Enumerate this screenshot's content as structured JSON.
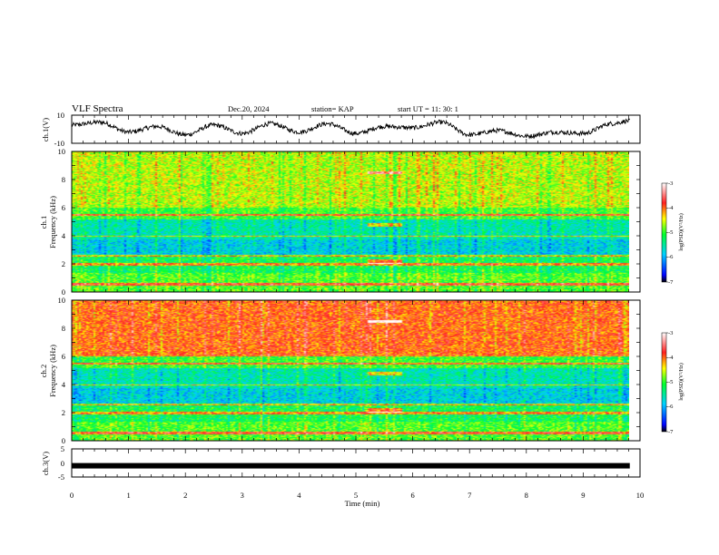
{
  "header": {
    "title": "VLF Spectra",
    "date": "Dec.20, 2024",
    "station": "station= KAP",
    "start": "start UT =  11: 30: 1"
  },
  "chart_data": [
    {
      "type": "line",
      "panel": "ch1-waveform",
      "ylabel": "ch.1(V)",
      "ylim": [
        -10,
        10
      ],
      "y_ticks": [
        "10",
        "-10"
      ],
      "xlim": [
        0,
        10
      ],
      "x": [
        0,
        0.5,
        1,
        1.5,
        2,
        2.5,
        3,
        3.5,
        4,
        4.5,
        5,
        5.5,
        6,
        6.5,
        7,
        7.5,
        8,
        8.5,
        9,
        9.5,
        9.82
      ],
      "values": [
        3,
        5,
        -2,
        2,
        -4,
        3,
        -3,
        4,
        -2,
        4,
        -3,
        2,
        1,
        5,
        -4,
        -1,
        -5,
        -2,
        -3,
        4,
        6
      ]
    },
    {
      "type": "heatmap",
      "panel": "ch1-spectrogram",
      "ylabel": "ch.1\nFrequency (kHz)",
      "ylim": [
        0,
        10
      ],
      "y_ticks": [
        "0",
        "2",
        "4",
        "6",
        "8",
        "10"
      ],
      "xlim": [
        0,
        10
      ],
      "colorbar": {
        "label": "log(PSD)(V²/Hz)",
        "range": [
          -7,
          -3
        ],
        "ticks": [
          "-3",
          "-4",
          "-5",
          "-6",
          "-7"
        ]
      }
    },
    {
      "type": "heatmap",
      "panel": "ch2-spectrogram",
      "ylabel": "ch.2\nFrequency (kHz)",
      "ylim": [
        0,
        10
      ],
      "y_ticks": [
        "0",
        "2",
        "4",
        "6",
        "8",
        "10"
      ],
      "xlim": [
        0,
        10
      ],
      "colorbar": {
        "label": "log(PSD)(V²/Hz)",
        "range": [
          -7,
          -3
        ],
        "ticks": [
          "-3",
          "-4",
          "-5",
          "-6",
          "-7"
        ]
      }
    },
    {
      "type": "line",
      "panel": "ch3-waveform",
      "ylabel": "ch.3(V)",
      "ylim": [
        -5,
        5
      ],
      "y_ticks": [
        "5",
        "0",
        "-5"
      ],
      "xlim": [
        0,
        10
      ],
      "x": [
        0,
        9.82
      ],
      "values": [
        -1,
        -1
      ]
    }
  ],
  "xaxis": {
    "label": "Time (min)",
    "ticks": [
      "0",
      "1",
      "2",
      "3",
      "4",
      "5",
      "6",
      "7",
      "8",
      "9",
      "10"
    ]
  }
}
